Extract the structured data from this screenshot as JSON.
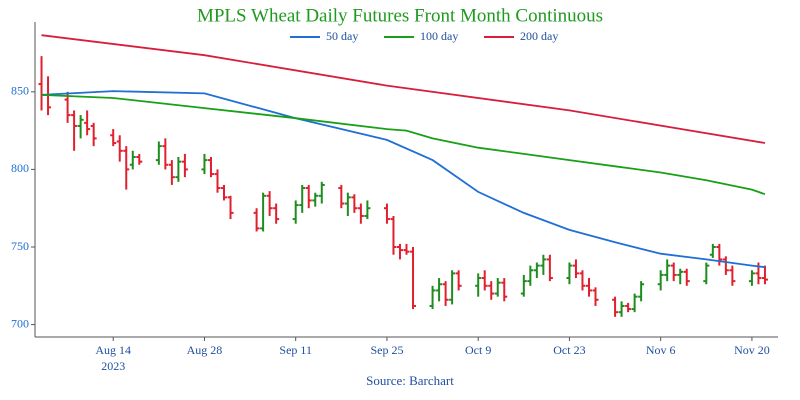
{
  "chart_data": {
    "type": "ohlc",
    "title": "MPLS Wheat Daily Futures Front Month Continuous",
    "source": "Source: Barchart",
    "x_year_label": "2023",
    "x": [
      "2023-08-03",
      "2023-08-04",
      "2023-08-07",
      "2023-08-08",
      "2023-08-09",
      "2023-08-10",
      "2023-08-11",
      "2023-08-14",
      "2023-08-15",
      "2023-08-16",
      "2023-08-17",
      "2023-08-18",
      "2023-08-21",
      "2023-08-22",
      "2023-08-23",
      "2023-08-24",
      "2023-08-25",
      "2023-08-28",
      "2023-08-29",
      "2023-08-30",
      "2023-08-31",
      "2023-09-01",
      "2023-09-05",
      "2023-09-06",
      "2023-09-07",
      "2023-09-08",
      "2023-09-11",
      "2023-09-12",
      "2023-09-13",
      "2023-09-14",
      "2023-09-15",
      "2023-09-18",
      "2023-09-19",
      "2023-09-20",
      "2023-09-21",
      "2023-09-22",
      "2023-09-25",
      "2023-09-26",
      "2023-09-27",
      "2023-09-28",
      "2023-09-29",
      "2023-10-02",
      "2023-10-03",
      "2023-10-04",
      "2023-10-05",
      "2023-10-06",
      "2023-10-09",
      "2023-10-10",
      "2023-10-11",
      "2023-10-12",
      "2023-10-13",
      "2023-10-16",
      "2023-10-17",
      "2023-10-18",
      "2023-10-19",
      "2023-10-20",
      "2023-10-23",
      "2023-10-24",
      "2023-10-25",
      "2023-10-26",
      "2023-10-27",
      "2023-10-30",
      "2023-10-31",
      "2023-11-01",
      "2023-11-02",
      "2023-11-03",
      "2023-11-06",
      "2023-11-07",
      "2023-11-08",
      "2023-11-09",
      "2023-11-10",
      "2023-11-13",
      "2023-11-14",
      "2023-11-15",
      "2023-11-16",
      "2023-11-17",
      "2023-11-20",
      "2023-11-21",
      "2023-11-22"
    ],
    "open": [
      855,
      848,
      845,
      835,
      828,
      830,
      828,
      822,
      818,
      812,
      803,
      808,
      806,
      815,
      803,
      795,
      805,
      800,
      806,
      797,
      788,
      782,
      772,
      762,
      783,
      775,
      768,
      777,
      788,
      780,
      783,
      788,
      778,
      782,
      775,
      770,
      775,
      768,
      750,
      748,
      747,
      712,
      722,
      726,
      716,
      733,
      725,
      730,
      725,
      720,
      727,
      720,
      728,
      735,
      738,
      742,
      730,
      738,
      733,
      725,
      722,
      716,
      708,
      712,
      710,
      718,
      726,
      732,
      738,
      732,
      734,
      728,
      745,
      750,
      742,
      735,
      728,
      733,
      730
    ],
    "high": [
      873,
      860,
      850,
      838,
      835,
      838,
      830,
      826,
      822,
      815,
      812,
      810,
      818,
      820,
      806,
      808,
      810,
      810,
      808,
      800,
      790,
      783,
      775,
      785,
      786,
      778,
      780,
      790,
      790,
      785,
      792,
      790,
      785,
      784,
      778,
      780,
      778,
      770,
      752,
      752,
      750,
      725,
      730,
      728,
      735,
      735,
      733,
      735,
      728,
      730,
      730,
      732,
      738,
      740,
      745,
      745,
      740,
      742,
      735,
      730,
      724,
      718,
      715,
      714,
      720,
      728,
      735,
      742,
      740,
      736,
      736,
      740,
      752,
      752,
      744,
      738,
      735,
      740,
      738
    ],
    "low": [
      838,
      835,
      830,
      812,
      820,
      822,
      815,
      815,
      805,
      787,
      800,
      803,
      803,
      800,
      790,
      792,
      795,
      797,
      795,
      785,
      780,
      768,
      760,
      760,
      770,
      765,
      765,
      772,
      775,
      776,
      778,
      775,
      770,
      772,
      765,
      768,
      765,
      745,
      742,
      745,
      710,
      710,
      715,
      712,
      713,
      722,
      718,
      722,
      716,
      718,
      715,
      718,
      725,
      730,
      732,
      728,
      726,
      730,
      722,
      718,
      712,
      705,
      705,
      708,
      708,
      715,
      722,
      728,
      728,
      726,
      725,
      726,
      743,
      738,
      732,
      725,
      725,
      726,
      726
    ],
    "close": [
      848,
      840,
      835,
      828,
      832,
      826,
      820,
      817,
      812,
      800,
      808,
      805,
      815,
      803,
      795,
      805,
      800,
      806,
      797,
      788,
      782,
      772,
      762,
      783,
      775,
      768,
      777,
      788,
      780,
      783,
      790,
      778,
      782,
      775,
      770,
      775,
      768,
      750,
      748,
      747,
      712,
      722,
      726,
      716,
      733,
      725,
      730,
      725,
      720,
      727,
      718,
      728,
      735,
      738,
      742,
      730,
      738,
      733,
      725,
      722,
      716,
      708,
      712,
      710,
      718,
      726,
      732,
      738,
      732,
      734,
      728,
      738,
      750,
      742,
      735,
      728,
      733,
      730,
      729
    ],
    "up_color": "#1e8c1e",
    "down_color": "#e0202e",
    "series": [
      {
        "name": "50 day",
        "color": "#1f6fd6",
        "x": [
          "2023-08-03",
          "2023-08-14",
          "2023-08-28",
          "2023-09-11",
          "2023-09-25",
          "2023-10-02",
          "2023-10-09",
          "2023-10-16",
          "2023-10-23",
          "2023-10-30",
          "2023-11-06",
          "2023-11-13",
          "2023-11-20",
          "2023-11-22"
        ],
        "values": [
          848,
          850.5,
          849,
          833,
          819,
          806,
          785.5,
          772,
          761,
          753,
          745.7,
          742,
          738,
          737
        ]
      },
      {
        "name": "100 day",
        "color": "#18a018",
        "x": [
          "2023-08-03",
          "2023-08-14",
          "2023-08-28",
          "2023-09-11",
          "2023-09-25",
          "2023-09-28",
          "2023-10-02",
          "2023-10-09",
          "2023-10-16",
          "2023-10-23",
          "2023-10-30",
          "2023-11-06",
          "2023-11-13",
          "2023-11-20",
          "2023-11-22"
        ],
        "values": [
          848,
          846,
          839.5,
          833,
          826,
          825,
          820,
          814,
          810,
          806,
          802,
          798,
          793,
          787,
          784
        ]
      },
      {
        "name": "200 day",
        "color": "#d81e3c",
        "x": [
          "2023-08-03",
          "2023-08-28",
          "2023-09-25",
          "2023-10-23",
          "2023-11-22"
        ],
        "values": [
          886.5,
          873.6,
          854,
          838,
          817
        ]
      }
    ],
    "xlim": [
      "2023-08-02",
      "2023-11-24"
    ],
    "xticks": [
      {
        "value": "2023-08-14",
        "label": "Aug 14"
      },
      {
        "value": "2023-08-28",
        "label": "Aug 28"
      },
      {
        "value": "2023-09-11",
        "label": "Sep 11"
      },
      {
        "value": "2023-09-25",
        "label": "Sep 25"
      },
      {
        "value": "2023-10-09",
        "label": "Oct 9"
      },
      {
        "value": "2023-10-23",
        "label": "Oct 23"
      },
      {
        "value": "2023-11-06",
        "label": "Nov 6"
      },
      {
        "value": "2023-11-20",
        "label": "Nov 20"
      }
    ],
    "ylim": [
      692,
      895
    ],
    "yticks": [
      700,
      750,
      800,
      850
    ]
  }
}
